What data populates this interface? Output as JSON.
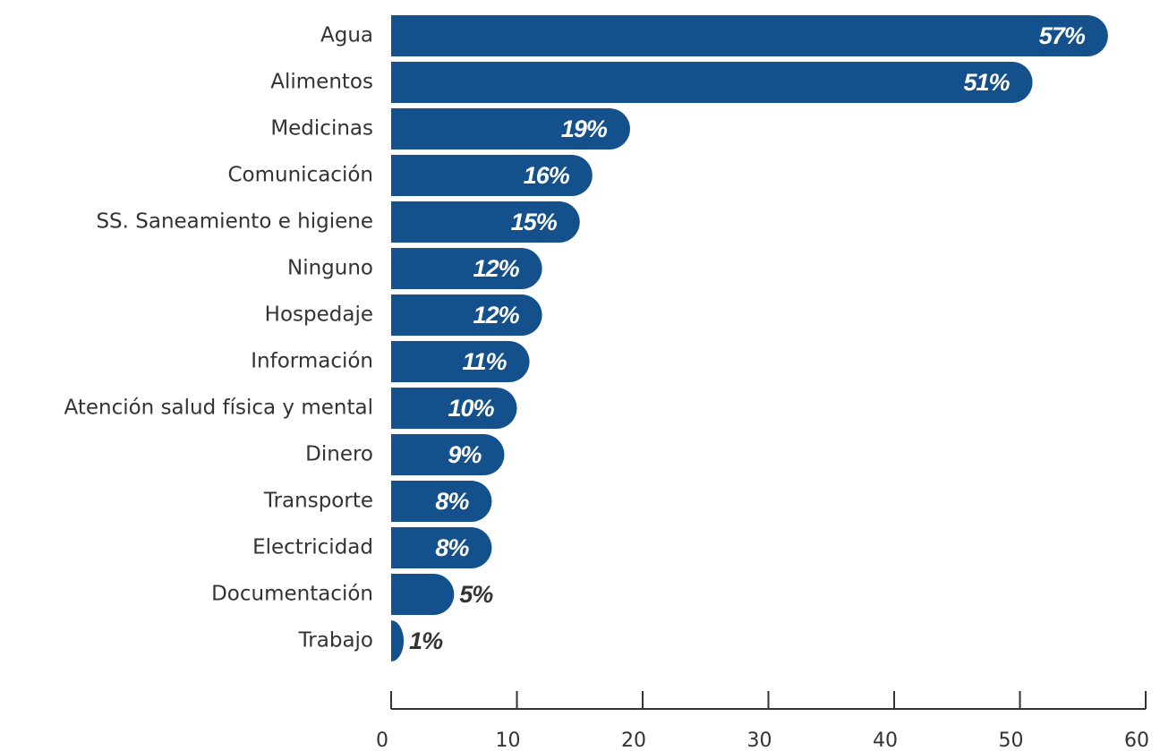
{
  "chart_data": {
    "type": "bar",
    "orientation": "horizontal",
    "categories": [
      "Agua",
      "Alimentos",
      "Medicinas",
      "Comunicación",
      "SS. Saneamiento e higiene",
      "Ninguno",
      "Hospedaje",
      "Información",
      "Atención salud física y mental",
      "Dinero",
      "Transporte",
      "Electricidad",
      "Documentación",
      "Trabajo"
    ],
    "values": [
      57,
      51,
      19,
      16,
      15,
      12,
      12,
      11,
      10,
      9,
      8,
      8,
      5,
      1
    ],
    "value_labels": [
      "57%",
      "51%",
      "19%",
      "16%",
      "15%",
      "12%",
      "12%",
      "11%",
      "10%",
      "9%",
      "8%",
      "8%",
      "5%",
      "1%"
    ],
    "color": "#13508c",
    "xlim": [
      0,
      60
    ],
    "xticks": [
      0,
      10,
      20,
      30,
      40,
      50,
      60
    ]
  }
}
